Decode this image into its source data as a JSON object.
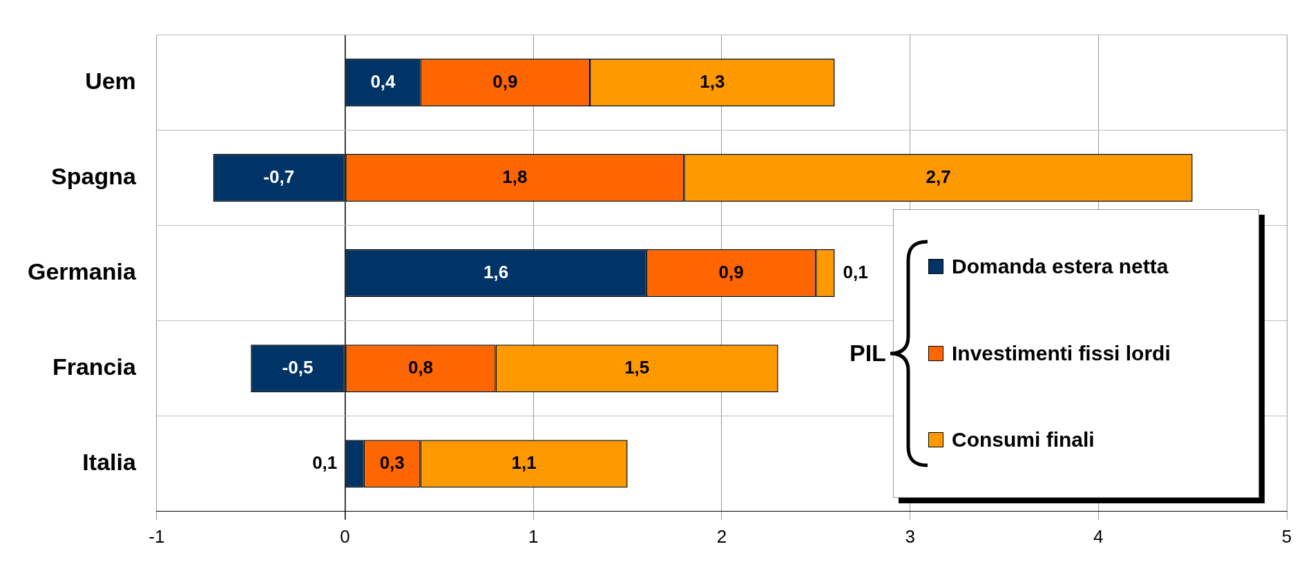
{
  "chart_data": {
    "type": "bar",
    "orientation": "horizontal",
    "stacked": true,
    "categories": [
      "Uem",
      "Spagna",
      "Germania",
      "Francia",
      "Italia"
    ],
    "series": [
      {
        "name": "Domanda estera netta",
        "color": "#003366",
        "values": [
          0.4,
          -0.7,
          1.6,
          -0.5,
          0.1
        ],
        "value_labels": [
          "0,4",
          "-0,7",
          "1,6",
          "-0,5",
          "0,1"
        ]
      },
      {
        "name": "Investimenti fissi lordi",
        "color": "#ff6600",
        "values": [
          0.9,
          1.8,
          0.9,
          0.8,
          0.3
        ],
        "value_labels": [
          "0,9",
          "1,8",
          "0,9",
          "0,8",
          "0,3"
        ]
      },
      {
        "name": "Consumi finali",
        "color": "#ff9900",
        "values": [
          1.3,
          2.7,
          0.1,
          1.5,
          1.1
        ],
        "value_labels": [
          "1,3",
          "2,7",
          "0,1",
          "1,5",
          "1,1"
        ]
      }
    ],
    "xlim": [
      -1,
      5
    ],
    "xticks": [
      -1,
      0,
      1,
      2,
      3,
      4,
      5
    ],
    "grid": true,
    "legend": "bottom right",
    "legend_title": "PIL"
  }
}
